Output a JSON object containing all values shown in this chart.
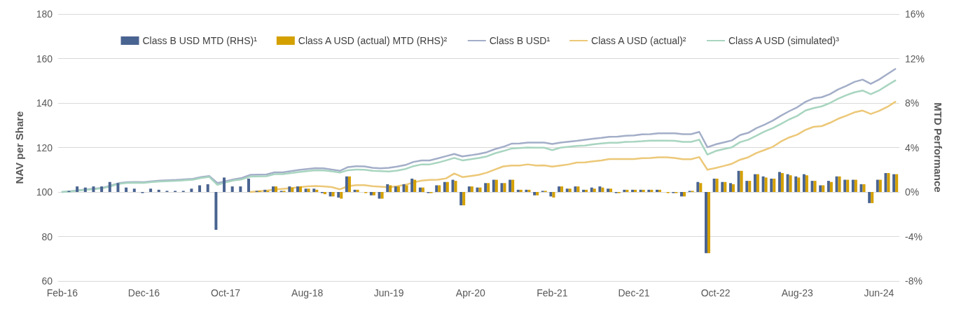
{
  "chart_data": {
    "type": "bar",
    "categories": [
      "Feb-16",
      null,
      null,
      null,
      null,
      null,
      null,
      null,
      null,
      null,
      "Dec-16",
      null,
      null,
      null,
      null,
      null,
      null,
      null,
      null,
      null,
      "Oct-17",
      null,
      null,
      null,
      null,
      null,
      null,
      null,
      null,
      null,
      "Aug-18",
      null,
      null,
      null,
      null,
      null,
      null,
      null,
      null,
      null,
      "Jun-19",
      null,
      null,
      null,
      null,
      null,
      null,
      null,
      null,
      null,
      "Apr-20",
      null,
      null,
      null,
      null,
      null,
      null,
      null,
      null,
      null,
      "Feb-21",
      null,
      null,
      null,
      null,
      null,
      null,
      null,
      null,
      null,
      "Dec-21",
      null,
      null,
      null,
      null,
      null,
      null,
      null,
      null,
      null,
      "Oct-22",
      null,
      null,
      null,
      null,
      null,
      null,
      null,
      null,
      null,
      "Aug-23",
      null,
      null,
      null,
      null,
      null,
      null,
      null,
      null,
      null,
      "Jun-24",
      null,
      null
    ],
    "series": [
      {
        "name": "Class B USD MTD (RHS)¹",
        "axis": "y2",
        "color": "#4a6491",
        "values": [
          null,
          0.1,
          0.5,
          0.4,
          0.5,
          0.5,
          0.9,
          0.8,
          0.4,
          0.3,
          -0.1,
          0.3,
          0.2,
          0.1,
          0.1,
          0.1,
          0.3,
          0.6,
          0.7,
          -3.4,
          1.3,
          0.5,
          0.5,
          1.2,
          0.1,
          0.2,
          0.5,
          0.1,
          0.5,
          0.5,
          0.3,
          0.3,
          -0.1,
          -0.4,
          -0.5,
          1.4,
          0.2,
          0,
          -0.3,
          -0.6,
          0.7,
          0.5,
          0.7,
          1.2,
          0.4,
          -0.1,
          0.6,
          0.9,
          1.1,
          -1.2,
          0.5,
          0.4,
          0.8,
          1.1,
          0.8,
          1.1,
          0.2,
          0.2,
          -0.3,
          0.1,
          -0.4,
          0.5,
          0.3,
          0.5,
          0.2,
          0.4,
          0.5,
          0.3,
          -0.1,
          0.2,
          0.2,
          0.2,
          0.2,
          0.2,
          0,
          -0.1,
          -0.4,
          0.1,
          0.9,
          -5.5,
          1.2,
          0.9,
          0.8,
          1.9,
          1,
          1.6,
          1.4,
          1.2,
          1.8,
          1.6,
          1.4,
          1.6,
          1,
          0.6,
          1,
          1.4,
          1.1,
          1.1,
          0.7,
          -1,
          1.1,
          1.7,
          1.6
        ]
      },
      {
        "name": "Class A USD (actual) MTD (RHS)²",
        "axis": "y2",
        "color": "#d4a000",
        "values": [
          null,
          null,
          null,
          null,
          null,
          null,
          null,
          null,
          null,
          null,
          null,
          null,
          null,
          null,
          null,
          null,
          null,
          null,
          null,
          null,
          null,
          null,
          null,
          null,
          0.1,
          0.1,
          0.5,
          0.1,
          0.4,
          0.5,
          0.3,
          0.2,
          -0.2,
          -0.4,
          -0.6,
          1.4,
          0.2,
          -0.1,
          -0.3,
          -0.6,
          0.6,
          0.5,
          0.6,
          1.1,
          0.4,
          -0.1,
          0.6,
          0.9,
          1,
          -1.2,
          0.5,
          0.4,
          0.8,
          1.1,
          0.8,
          1.1,
          0.2,
          0.2,
          -0.3,
          0.1,
          -0.5,
          0.5,
          0.3,
          0.5,
          0.2,
          0.3,
          0.4,
          0.3,
          -0.1,
          0.2,
          0.2,
          0.2,
          0.2,
          0.2,
          -0.1,
          -0.1,
          -0.4,
          0.1,
          0.8,
          -5.5,
          1.2,
          0.9,
          0.7,
          1.9,
          1,
          1.6,
          1.3,
          1.2,
          1.7,
          1.5,
          1.3,
          1.5,
          1,
          0.6,
          0.9,
          1.4,
          1.1,
          1.1,
          0.7,
          -1,
          1.1,
          1.7,
          1.6
        ]
      },
      {
        "name": "Class B USD¹",
        "type": "line",
        "color": "#a3aec8",
        "values": [
          100,
          100.3,
          100.8,
          101.2,
          101.5,
          101.9,
          102.9,
          104,
          104.4,
          104.5,
          104.4,
          104.8,
          105.1,
          105.3,
          105.4,
          105.7,
          105.9,
          106.7,
          107.2,
          104.0,
          104.8,
          105.7,
          106.3,
          107.7,
          107.8,
          107.9,
          108.8,
          108.8,
          109.4,
          109.9,
          110.3,
          110.7,
          110.6,
          110.1,
          109.5,
          111.2,
          111.6,
          111.5,
          110.9,
          110.6,
          110.9,
          111.4,
          112.1,
          113.5,
          114.2,
          114.2,
          115.1,
          116.1,
          117.1,
          116,
          116.5,
          117.1,
          117.9,
          119.3,
          120.3,
          121.7,
          121.8,
          122.2,
          122.2,
          122.2,
          121.6,
          122.2,
          122.6,
          123,
          123.5,
          123.9,
          124.3,
          124.8,
          124.9,
          125.3,
          125.4,
          125.9,
          126,
          126.4,
          126.4,
          126.4,
          126,
          126,
          127,
          120.1,
          121.4,
          122.3,
          123.2,
          125.6,
          126.6,
          128.7,
          130.3,
          132.1,
          134.3,
          136.3,
          138.1,
          140.5,
          142.1,
          142.6,
          144,
          146.1,
          147.7,
          149.5,
          150.5,
          148.6,
          150.5,
          152.9,
          155.3
        ]
      },
      {
        "name": "Class A USD (actual)²",
        "type": "line",
        "color": "#ecc878",
        "values": [
          null,
          null,
          null,
          null,
          null,
          null,
          null,
          null,
          null,
          null,
          null,
          null,
          null,
          null,
          null,
          null,
          null,
          null,
          null,
          null,
          null,
          null,
          null,
          100,
          100.3,
          100.6,
          101.1,
          101.4,
          101.7,
          102.1,
          102.5,
          102.7,
          102.5,
          102.2,
          101.2,
          102.6,
          103.1,
          103.1,
          102.6,
          102.4,
          102.1,
          102.6,
          103.2,
          104.3,
          105.1,
          105.4,
          105.5,
          106.1,
          108.3,
          106.7,
          107.2,
          107.7,
          108.7,
          110.1,
          111.5,
          111.9,
          111.9,
          112.4,
          111.9,
          112,
          111.4,
          111.9,
          112.4,
          113.2,
          113.3,
          113.8,
          114.2,
          114.8,
          114.8,
          114.8,
          114.8,
          115.2,
          115.3,
          115.6,
          115.6,
          115.3,
          114.7,
          114.7,
          115.7,
          110,
          110.8,
          111.7,
          112.7,
          114.5,
          115.6,
          117.5,
          118.9,
          120.3,
          122.7,
          124.5,
          125.8,
          127.9,
          129.3,
          129.6,
          131.1,
          132.9,
          134.3,
          135.8,
          136.6,
          135.1,
          136.4,
          138.2,
          140.5
        ]
      },
      {
        "name": "Class A USD (simulated)³",
        "type": "line",
        "color": "#a8d5c0",
        "values": [
          100,
          100.2,
          100.6,
          101,
          101.3,
          101.7,
          102.7,
          103.7,
          104.1,
          104.2,
          104.1,
          104.5,
          104.7,
          104.9,
          105,
          105.3,
          105.5,
          106.3,
          106.8,
          103.2,
          104.3,
          105.2,
          105.7,
          106.9,
          107,
          107.1,
          108,
          108,
          108.5,
          109,
          109.4,
          109.8,
          109.7,
          109.3,
          108.7,
          109.8,
          110.1,
          110,
          109.5,
          109.4,
          109.2,
          109.6,
          110.3,
          111.6,
          112.4,
          112.4,
          113.2,
          114.2,
          115.3,
          114.2,
          114.7,
          115.3,
          116,
          117.4,
          118.4,
          119.5,
          119.8,
          120,
          119.9,
          119.9,
          118.8,
          119.9,
          120.3,
          120.7,
          120.9,
          121.4,
          121.8,
          122.1,
          122.1,
          122.5,
          122.6,
          122.8,
          123.1,
          123.1,
          123.1,
          123,
          122.5,
          122.5,
          123.5,
          116.8,
          118.4,
          119.3,
          120.1,
          122.4,
          123.5,
          125.3,
          127.2,
          128.7,
          130.6,
          132.6,
          134.2,
          136.6,
          137.7,
          138.5,
          140,
          141.9,
          143.5,
          144.8,
          145.6,
          144,
          145.6,
          147.9,
          150.1
        ]
      }
    ],
    "ylabel": "NAV per Share",
    "y2label": "MTD Performance",
    "ylim": [
      60,
      180
    ],
    "yticks": [
      60,
      80,
      100,
      120,
      140,
      160,
      180
    ],
    "y2lim": [
      -8,
      16
    ],
    "y2ticks": [
      {
        "value": -8,
        "label": "-8%"
      },
      {
        "value": -4,
        "label": "-4%"
      },
      {
        "value": 0,
        "label": "0%"
      },
      {
        "value": 4,
        "label": "4%"
      },
      {
        "value": 8,
        "label": "8%"
      },
      {
        "value": 12,
        "label": "12%"
      },
      {
        "value": 16,
        "label": "16%"
      }
    ],
    "grid": "y",
    "legend": "top",
    "marker": "none",
    "line_style": "solid"
  }
}
